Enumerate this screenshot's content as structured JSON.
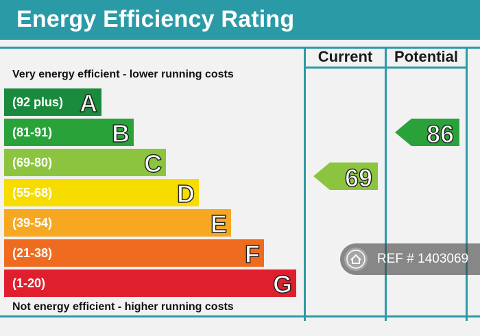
{
  "title": "Energy Efficiency Rating",
  "columns": {
    "current": "Current",
    "potential": "Potential"
  },
  "top_caption": "Very energy efficient - lower running costs",
  "bottom_caption": "Not energy efficient - higher running costs",
  "bands": [
    {
      "range": "(92 plus)",
      "letter": "A",
      "color": "#1a8a3c"
    },
    {
      "range": "(81-91)",
      "letter": "B",
      "color": "#2aa23a"
    },
    {
      "range": "(69-80)",
      "letter": "C",
      "color": "#8cc43f"
    },
    {
      "range": "(55-68)",
      "letter": "D",
      "color": "#f7dc00"
    },
    {
      "range": "(39-54)",
      "letter": "E",
      "color": "#f7a823"
    },
    {
      "range": "(21-38)",
      "letter": "F",
      "color": "#ef6b1f"
    },
    {
      "range": "(1-20)",
      "letter": "G",
      "color": "#e01f2e"
    }
  ],
  "ratings": {
    "current": {
      "value": "69",
      "band": "C",
      "color": "#8cc43f"
    },
    "potential": {
      "value": "86",
      "band": "B",
      "color": "#2aa23a"
    }
  },
  "overlay": {
    "ref_text": "REF # 1403069",
    "icon": "home-icon"
  }
}
